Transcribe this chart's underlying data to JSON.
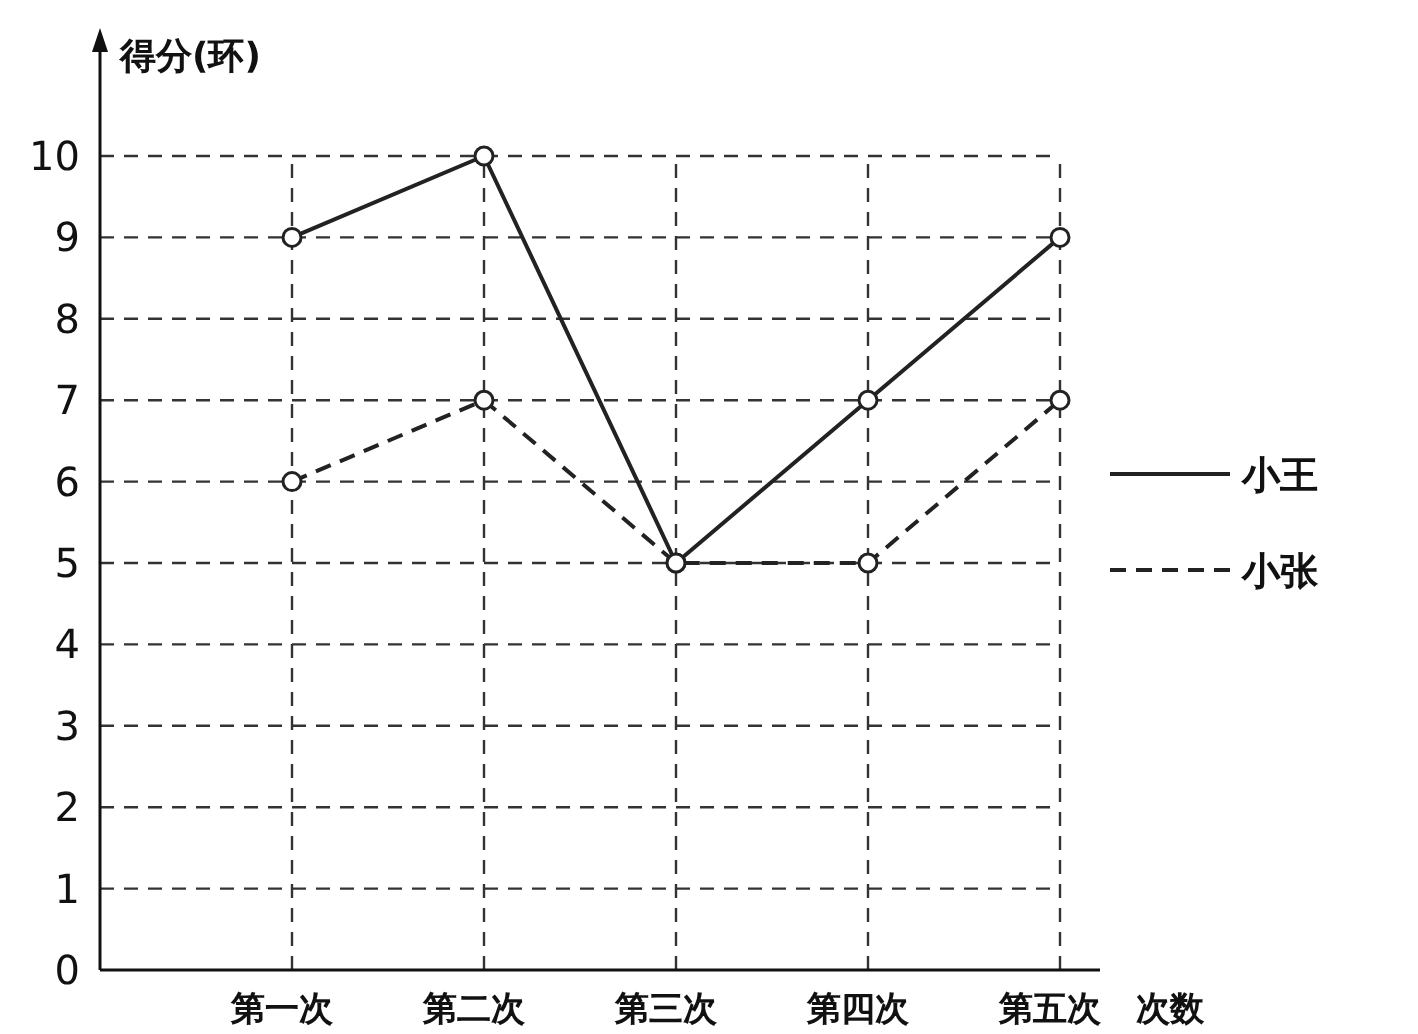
{
  "chart_data": {
    "type": "line",
    "xlabel": "次数",
    "ylabel": "得分(环)",
    "categories": [
      "第一次",
      "第二次",
      "第三次",
      "第四次",
      "第五次"
    ],
    "series": [
      {
        "name": "小王",
        "color": "#222222",
        "values": [
          9,
          10,
          5,
          7,
          9
        ],
        "line_style": "solid"
      },
      {
        "name": "小张",
        "color": "#222222",
        "values": [
          6,
          7,
          5,
          5,
          7
        ],
        "line_style": "dashed"
      }
    ],
    "ylim": [
      0,
      10
    ],
    "yticks": [
      0,
      1,
      2,
      3,
      4,
      5,
      6,
      7,
      8,
      9,
      10
    ],
    "grid": true,
    "legend": "right",
    "marker": "circle"
  }
}
